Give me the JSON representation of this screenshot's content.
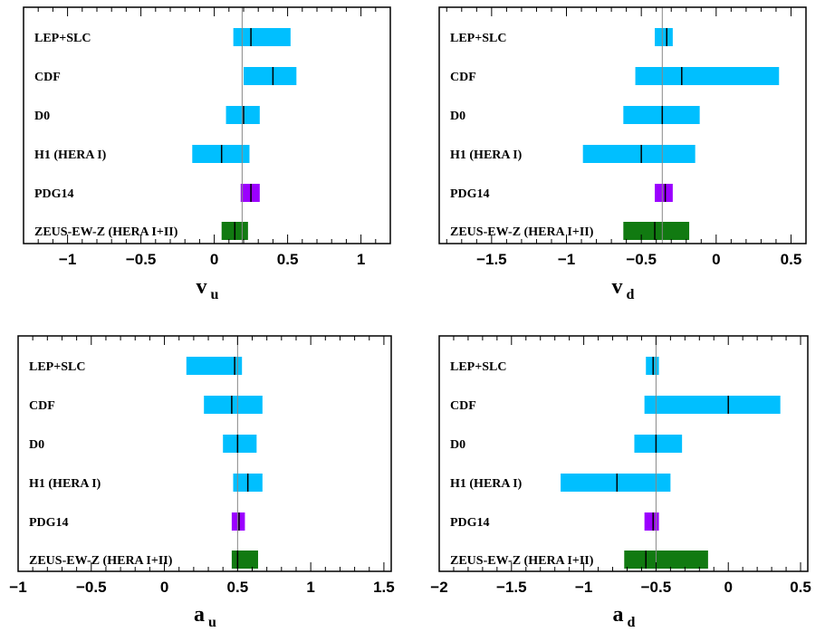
{
  "chart_data": [
    {
      "type": "interval",
      "id": "vu",
      "xlabel": "v",
      "xlabel_sub": "u",
      "xlim": [
        -1.3,
        1.2
      ],
      "xticks": [
        -1,
        -0.5,
        0,
        0.5,
        1
      ],
      "xtick_labels": [
        "−1",
        "−0.5",
        "0",
        "0.5",
        "1"
      ],
      "reference_line": 0.19,
      "rows": [
        {
          "label": "LEP+SLC",
          "central": 0.25,
          "low": 0.13,
          "high": 0.52,
          "color": "#00bfff"
        },
        {
          "label": "CDF",
          "central": 0.4,
          "low": 0.2,
          "high": 0.56,
          "color": "#00bfff"
        },
        {
          "label": "D0",
          "central": 0.2,
          "low": 0.08,
          "high": 0.31,
          "color": "#00bfff"
        },
        {
          "label": "H1 (HERA I)",
          "central": 0.05,
          "low": -0.15,
          "high": 0.24,
          "color": "#00bfff"
        },
        {
          "label": "PDG14",
          "central": 0.25,
          "low": 0.18,
          "high": 0.31,
          "color": "#9b00ff"
        },
        {
          "label": "ZEUS-EW-Z (HERA I+II)",
          "central": 0.14,
          "low": 0.05,
          "high": 0.23,
          "color": "#117a11"
        }
      ]
    },
    {
      "type": "interval",
      "id": "vd",
      "xlabel": "v",
      "xlabel_sub": "d",
      "xlim": [
        -1.85,
        0.6
      ],
      "xticks": [
        -1.5,
        -1,
        -0.5,
        0,
        0.5
      ],
      "xtick_labels": [
        "−1.5",
        "−1",
        "−0.5",
        "0",
        "0.5"
      ],
      "reference_line": -0.36,
      "rows": [
        {
          "label": "LEP+SLC",
          "central": -0.33,
          "low": -0.41,
          "high": -0.29,
          "color": "#00bfff"
        },
        {
          "label": "CDF",
          "central": -0.23,
          "low": -0.54,
          "high": 0.42,
          "color": "#00bfff"
        },
        {
          "label": "D0",
          "central": -0.36,
          "low": -0.62,
          "high": -0.11,
          "color": "#00bfff"
        },
        {
          "label": "H1 (HERA I)",
          "central": -0.5,
          "low": -0.89,
          "high": -0.14,
          "color": "#00bfff"
        },
        {
          "label": "PDG14",
          "central": -0.34,
          "low": -0.41,
          "high": -0.29,
          "color": "#9b00ff"
        },
        {
          "label": "ZEUS-EW-Z (HERA I+II)",
          "central": -0.41,
          "low": -0.62,
          "high": -0.18,
          "color": "#117a11"
        }
      ]
    },
    {
      "type": "interval",
      "id": "au",
      "xlabel": "a",
      "xlabel_sub": "u",
      "xlim": [
        -1.0,
        1.55
      ],
      "xticks": [
        -1,
        -0.5,
        0,
        0.5,
        1,
        1.5
      ],
      "xtick_labels": [
        "−1",
        "−0.5",
        "0",
        "0.5",
        "1",
        "1.5"
      ],
      "reference_line": 0.5,
      "rows": [
        {
          "label": "LEP+SLC",
          "central": 0.48,
          "low": 0.15,
          "high": 0.53,
          "color": "#00bfff"
        },
        {
          "label": "CDF",
          "central": 0.46,
          "low": 0.27,
          "high": 0.67,
          "color": "#00bfff"
        },
        {
          "label": "D0",
          "central": 0.5,
          "low": 0.4,
          "high": 0.63,
          "color": "#00bfff"
        },
        {
          "label": "H1 (HERA I)",
          "central": 0.57,
          "low": 0.47,
          "high": 0.67,
          "color": "#00bfff"
        },
        {
          "label": "PDG14",
          "central": 0.51,
          "low": 0.46,
          "high": 0.55,
          "color": "#9b00ff"
        },
        {
          "label": "ZEUS-EW-Z (HERA I+II)",
          "central": 0.5,
          "low": 0.46,
          "high": 0.64,
          "color": "#117a11"
        }
      ]
    },
    {
      "type": "interval",
      "id": "ad",
      "xlabel": "a",
      "xlabel_sub": "d",
      "xlim": [
        -2.0,
        0.55
      ],
      "xticks": [
        -2,
        -1.5,
        -1,
        -0.5,
        0,
        0.5
      ],
      "xtick_labels": [
        "−2",
        "−1.5",
        "−1",
        "−0.5",
        "0",
        "0.5"
      ],
      "reference_line": -0.5,
      "rows": [
        {
          "label": "LEP+SLC",
          "central": -0.52,
          "low": -0.57,
          "high": -0.48,
          "color": "#00bfff"
        },
        {
          "label": "CDF",
          "central": 0.0,
          "low": -0.58,
          "high": 0.36,
          "color": "#00bfff"
        },
        {
          "label": "D0",
          "central": -0.5,
          "low": -0.65,
          "high": -0.32,
          "color": "#00bfff"
        },
        {
          "label": "H1 (HERA I)",
          "central": -0.77,
          "low": -1.16,
          "high": -0.4,
          "color": "#00bfff"
        },
        {
          "label": "PDG14",
          "central": -0.52,
          "low": -0.58,
          "high": -0.48,
          "color": "#9b00ff"
        },
        {
          "label": "ZEUS-EW-Z (HERA I+II)",
          "central": -0.57,
          "low": -0.72,
          "high": -0.14,
          "color": "#117a11"
        }
      ]
    }
  ]
}
